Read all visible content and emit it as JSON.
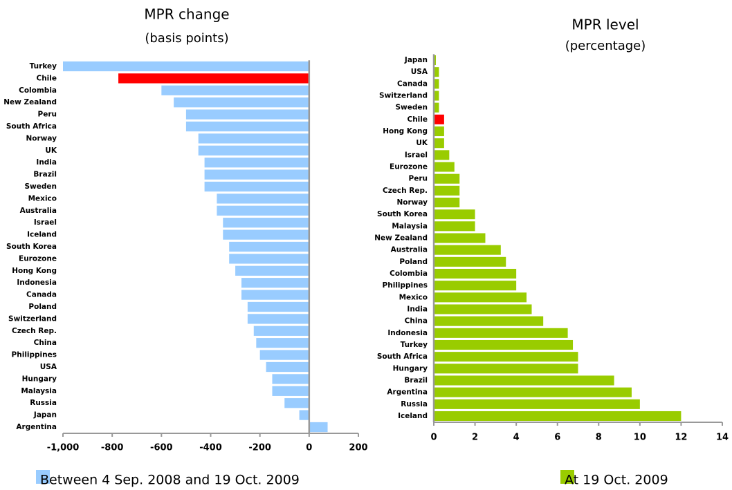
{
  "chart_data": [
    {
      "type": "hbar",
      "title": "MPR change",
      "subtitle": "(basis points)",
      "categories": [
        "Turkey",
        "Chile",
        "Colombia",
        "New Zealand",
        "Peru",
        "South Africa",
        "Norway",
        "UK",
        "India",
        "Brazil",
        "Sweden",
        "Mexico",
        "Australia",
        "Israel",
        "Iceland",
        "South Korea",
        "Eurozone",
        "Hong Kong",
        "Indonesia",
        "Canada",
        "Poland",
        "Switzerland",
        "Czech Rep.",
        "China",
        "Philippines",
        "USA",
        "Hungary",
        "Malaysia",
        "Russia",
        "Japan",
        "Argentina"
      ],
      "series": [
        {
          "name": "Between 4 Sep. 2008 and 19 Oct. 2009",
          "color": "#99ccff",
          "values": [
            -1000,
            -775,
            -600,
            -550,
            -500,
            -500,
            -450,
            -450,
            -425,
            -425,
            -425,
            -375,
            -375,
            -350,
            -350,
            -325,
            -325,
            -300,
            -275,
            -275,
            -250,
            -250,
            -225,
            -215,
            -200,
            -175,
            -150,
            -150,
            -100,
            -40,
            75
          ],
          "bar_colors": [
            "#99ccff",
            "#ff0000",
            "#99ccff",
            "#99ccff",
            "#99ccff",
            "#99ccff",
            "#99ccff",
            "#99ccff",
            "#99ccff",
            "#99ccff",
            "#99ccff",
            "#99ccff",
            "#99ccff",
            "#99ccff",
            "#99ccff",
            "#99ccff",
            "#99ccff",
            "#99ccff",
            "#99ccff",
            "#99ccff",
            "#99ccff",
            "#99ccff",
            "#99ccff",
            "#99ccff",
            "#99ccff",
            "#99ccff",
            "#99ccff",
            "#99ccff",
            "#99ccff",
            "#99ccff",
            "#99ccff"
          ]
        }
      ],
      "xlim": [
        -1000,
        200
      ],
      "xticks": [
        {
          "value": -1000,
          "label": "-1,000"
        },
        -800,
        -600,
        -400,
        -200,
        0,
        200
      ]
    },
    {
      "type": "hbar",
      "title": "MPR level",
      "subtitle": "(percentage)",
      "categories": [
        "Japan",
        "USA",
        "Canada",
        "Switzerland",
        "Sweden",
        "Chile",
        "Hong Kong",
        "UK",
        "Israel",
        "Eurozone",
        "Peru",
        "Czech Rep.",
        "Norway",
        "South Korea",
        "Malaysia",
        "New Zealand",
        "Australia",
        "Poland",
        "Colombia",
        "Philippines",
        "Mexico",
        "India",
        "China",
        "Indonesia",
        "Turkey",
        "South Africa",
        "Hungary",
        "Brazil",
        "Argentina",
        "Russia",
        "Iceland"
      ],
      "series": [
        {
          "name": "At 19 Oct. 2009",
          "color": "#99cc00",
          "values": [
            0.1,
            0.25,
            0.25,
            0.25,
            0.25,
            0.5,
            0.5,
            0.5,
            0.75,
            1,
            1.25,
            1.25,
            1.25,
            2,
            2,
            2.5,
            3.25,
            3.5,
            4,
            4,
            4.5,
            4.75,
            5.31,
            6.5,
            6.75,
            7,
            7,
            8.75,
            9.6,
            10,
            12
          ],
          "bar_colors": [
            "#99cc00",
            "#99cc00",
            "#99cc00",
            "#99cc00",
            "#99cc00",
            "#ff0000",
            "#99cc00",
            "#99cc00",
            "#99cc00",
            "#99cc00",
            "#99cc00",
            "#99cc00",
            "#99cc00",
            "#99cc00",
            "#99cc00",
            "#99cc00",
            "#99cc00",
            "#99cc00",
            "#99cc00",
            "#99cc00",
            "#99cc00",
            "#99cc00",
            "#99cc00",
            "#99cc00",
            "#99cc00",
            "#99cc00",
            "#99cc00",
            "#99cc00",
            "#99cc00",
            "#99cc00",
            "#99cc00"
          ]
        }
      ],
      "xlim": [
        0,
        14
      ],
      "xticks": [
        0,
        2,
        4,
        6,
        8,
        10,
        12,
        14
      ]
    }
  ]
}
